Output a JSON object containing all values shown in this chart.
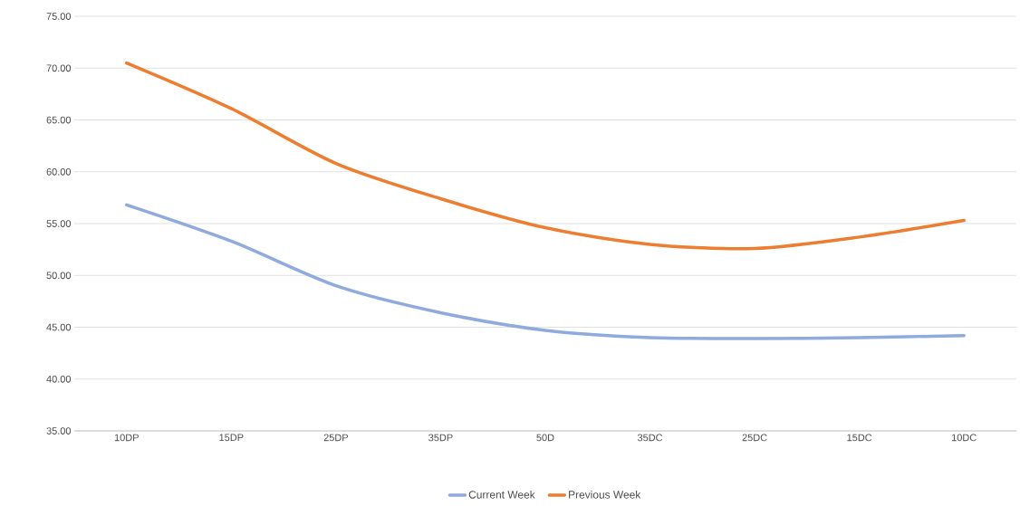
{
  "chart_data": {
    "type": "line",
    "categories": [
      "10DP",
      "15DP",
      "25DP",
      "35DP",
      "50D",
      "35DC",
      "25DC",
      "15DC",
      "10DC"
    ],
    "series": [
      {
        "name": "Current Week",
        "color": "#8faadc",
        "values": [
          56.8,
          53.3,
          49.0,
          46.4,
          44.7,
          44.0,
          43.9,
          44.0,
          44.2
        ]
      },
      {
        "name": "Previous Week",
        "color": "#ed7d31",
        "values": [
          70.5,
          66.1,
          60.8,
          57.4,
          54.6,
          53.0,
          52.6,
          53.7,
          55.3
        ]
      }
    ],
    "ylim": [
      35,
      75
    ],
    "yticks": [
      {
        "value": 35,
        "label": "35.00"
      },
      {
        "value": 40,
        "label": "40.00"
      },
      {
        "value": 45,
        "label": "45.00"
      },
      {
        "value": 50,
        "label": "50.00"
      },
      {
        "value": 55,
        "label": "55.00"
      },
      {
        "value": 60,
        "label": "60.00"
      },
      {
        "value": 65,
        "label": "65.00"
      },
      {
        "value": 70,
        "label": "70.00"
      },
      {
        "value": 75,
        "label": "75.00"
      }
    ],
    "grid": "y",
    "legend": "bottom",
    "marker": "none",
    "line_style": "solid"
  }
}
